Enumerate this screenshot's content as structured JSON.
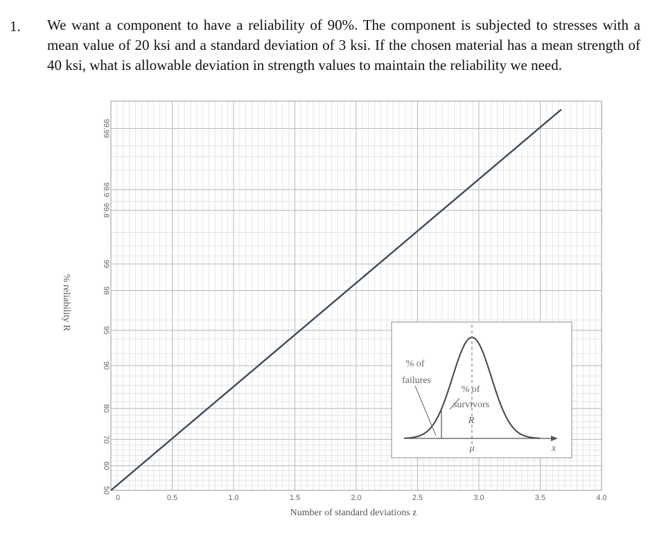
{
  "question": {
    "number": "1.",
    "text": "We want a component to have a reliability of 90%. The component is subjected to stresses with a mean value of 20 ksi and a standard deviation of 3 ksi. If the chosen material has a mean strength of 40 ksi, what is allowable deviation in strength values to maintain the reliability we need."
  },
  "colors": {
    "line": "#3d4a5a",
    "grid_major": "#b8b8b8",
    "grid_minor": "#dcdcdc",
    "frame": "#999999"
  },
  "chart_data": {
    "type": "line",
    "title": "",
    "xlabel": "Number of standard deviations z",
    "ylabel": "% reliability R",
    "xlim": [
      0,
      4.0
    ],
    "x_ticks": [
      "0",
      "0.5",
      "1.0",
      "1.5",
      "2.0",
      "2.5",
      "3.0",
      "3.5",
      "4.0"
    ],
    "y_scale": "normal-probability",
    "y_ticks": [
      "50",
      "60",
      "70",
      "80",
      "90",
      "95",
      "98",
      "99",
      "99.8",
      "99.9",
      "99.99"
    ],
    "grid": true,
    "series": [
      {
        "x": [
          0,
          4.0
        ],
        "y": [
          50,
          99.997
        ]
      }
    ],
    "inset": {
      "failures_label": [
        "% of",
        "failures"
      ],
      "survivors_label": [
        "% of",
        "survivors"
      ],
      "r_label": "R",
      "mu_label": "μ",
      "x_label": "x"
    }
  }
}
